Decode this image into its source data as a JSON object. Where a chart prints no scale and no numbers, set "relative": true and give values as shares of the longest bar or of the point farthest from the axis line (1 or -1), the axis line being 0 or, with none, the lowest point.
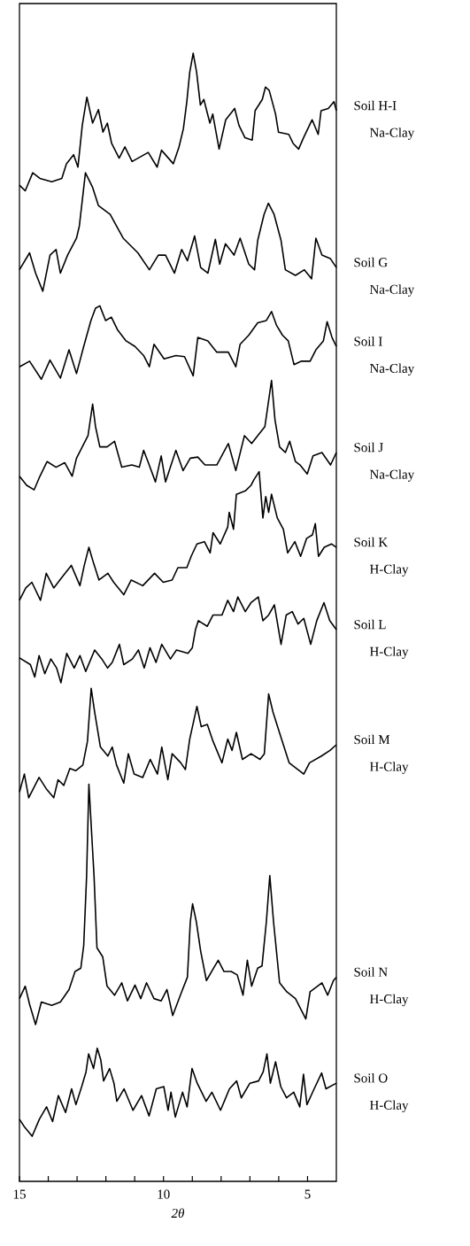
{
  "chart_data": {
    "type": "line",
    "relative": true,
    "xlabel": "2θ",
    "xlim": [
      15,
      4
    ],
    "xticks": [
      15,
      {
        "value": 14,
        "label": null
      },
      {
        "value": 13,
        "label": null
      },
      {
        "value": 12,
        "label": null
      },
      {
        "value": 11,
        "label": null
      },
      10,
      {
        "value": 9,
        "label": null
      },
      {
        "value": 8,
        "label": null
      },
      {
        "value": 7,
        "label": null
      },
      {
        "value": 6,
        "label": null
      },
      5
    ],
    "annotations": [
      "Na-Clay",
      "Na-Clay",
      "Na-Clay",
      "Na-Clay",
      "H-Clay",
      "H-Clay",
      "H-Clay",
      "H-Clay",
      "H-Clay"
    ],
    "series": [
      {
        "name": "Soil H-I",
        "color": "#000000",
        "x": [
          15.0,
          14.8,
          14.54,
          14.29,
          13.88,
          13.53,
          13.37,
          13.12,
          12.97,
          12.82,
          12.66,
          12.46,
          12.26,
          12.1,
          11.95,
          11.8,
          11.54,
          11.34,
          11.09,
          10.53,
          10.22,
          10.07,
          9.66,
          9.46,
          9.31,
          9.19,
          9.09,
          8.97,
          8.85,
          8.72,
          8.6,
          8.39,
          8.29,
          8.07,
          7.84,
          7.53,
          7.38,
          7.17,
          6.92,
          6.82,
          6.57,
          6.46,
          6.33,
          6.11,
          6.01,
          5.65,
          5.5,
          5.31,
          5.14,
          4.84,
          4.63,
          4.53,
          4.28,
          4.08,
          4.0
        ],
        "values": [
          0.883,
          0.878,
          0.894,
          0.889,
          0.886,
          0.889,
          0.902,
          0.91,
          0.899,
          0.936,
          0.961,
          0.938,
          0.95,
          0.93,
          0.938,
          0.92,
          0.907,
          0.917,
          0.904,
          0.912,
          0.899,
          0.914,
          0.902,
          0.917,
          0.933,
          0.957,
          0.983,
          1.0,
          0.983,
          0.954,
          0.959,
          0.938,
          0.946,
          0.915,
          0.941,
          0.951,
          0.936,
          0.925,
          0.923,
          0.949,
          0.959,
          0.97,
          0.967,
          0.946,
          0.93,
          0.928,
          0.92,
          0.915,
          0.925,
          0.941,
          0.928,
          0.949,
          0.951,
          0.957,
          0.949
        ]
      },
      {
        "name": "Soil G",
        "color": "#000000",
        "x": [
          15.0,
          14.65,
          14.44,
          14.19,
          13.94,
          13.73,
          13.58,
          13.33,
          13.02,
          12.92,
          12.71,
          12.46,
          12.26,
          11.85,
          11.4,
          10.89,
          10.49,
          10.18,
          9.93,
          9.62,
          9.37,
          9.17,
          8.92,
          8.71,
          8.46,
          8.2,
          8.05,
          7.85,
          7.55,
          7.34,
          7.04,
          6.84,
          6.73,
          6.51,
          6.36,
          6.16,
          5.92,
          5.77,
          5.42,
          5.11,
          4.86,
          4.71,
          4.5,
          4.21,
          4.0
        ],
        "values": [
          0.808,
          0.823,
          0.805,
          0.789,
          0.821,
          0.826,
          0.805,
          0.821,
          0.836,
          0.847,
          0.894,
          0.881,
          0.865,
          0.857,
          0.836,
          0.823,
          0.808,
          0.821,
          0.821,
          0.805,
          0.826,
          0.816,
          0.838,
          0.81,
          0.805,
          0.835,
          0.813,
          0.831,
          0.821,
          0.836,
          0.813,
          0.808,
          0.834,
          0.857,
          0.867,
          0.857,
          0.834,
          0.808,
          0.803,
          0.808,
          0.8,
          0.836,
          0.821,
          0.818,
          0.81
        ]
      },
      {
        "name": "Soil I",
        "color": "#000000",
        "x": [
          15.0,
          14.65,
          14.24,
          13.94,
          13.58,
          13.28,
          13.02,
          12.77,
          12.52,
          12.36,
          12.21,
          12.01,
          11.81,
          11.6,
          11.3,
          10.99,
          10.69,
          10.49,
          10.33,
          9.98,
          9.57,
          9.27,
          8.97,
          8.81,
          8.46,
          8.15,
          7.75,
          7.49,
          7.34,
          7.04,
          6.73,
          6.43,
          6.25,
          6.08,
          5.87,
          5.67,
          5.47,
          5.21,
          4.91,
          4.71,
          4.45,
          4.32,
          4.15,
          4.0
        ],
        "values": [
          0.722,
          0.727,
          0.711,
          0.728,
          0.712,
          0.737,
          0.716,
          0.74,
          0.763,
          0.774,
          0.776,
          0.763,
          0.766,
          0.755,
          0.745,
          0.74,
          0.732,
          0.722,
          0.742,
          0.729,
          0.732,
          0.731,
          0.714,
          0.748,
          0.745,
          0.735,
          0.735,
          0.722,
          0.742,
          0.75,
          0.761,
          0.763,
          0.771,
          0.759,
          0.75,
          0.745,
          0.724,
          0.727,
          0.727,
          0.737,
          0.745,
          0.762,
          0.748,
          0.74
        ]
      },
      {
        "name": "Soil  J",
        "color": "#000000",
        "x": [
          15.0,
          14.75,
          14.49,
          14.29,
          14.04,
          13.73,
          13.43,
          13.17,
          13.02,
          12.82,
          12.62,
          12.46,
          12.36,
          12.21,
          11.96,
          11.7,
          11.45,
          11.1,
          10.84,
          10.69,
          10.54,
          10.28,
          10.08,
          9.93,
          9.57,
          9.32,
          9.07,
          8.81,
          8.56,
          8.15,
          7.75,
          7.49,
          7.19,
          6.94,
          6.73,
          6.48,
          6.25,
          6.13,
          5.97,
          5.77,
          5.62,
          5.42,
          5.26,
          5.01,
          4.81,
          4.5,
          4.2,
          4.0
        ],
        "values": [
          0.625,
          0.617,
          0.613,
          0.625,
          0.638,
          0.633,
          0.637,
          0.625,
          0.641,
          0.651,
          0.661,
          0.689,
          0.669,
          0.651,
          0.651,
          0.656,
          0.633,
          0.635,
          0.633,
          0.648,
          0.638,
          0.62,
          0.643,
          0.62,
          0.648,
          0.63,
          0.641,
          0.642,
          0.635,
          0.635,
          0.654,
          0.63,
          0.661,
          0.654,
          0.661,
          0.669,
          0.71,
          0.675,
          0.651,
          0.646,
          0.656,
          0.638,
          0.635,
          0.627,
          0.643,
          0.646,
          0.635,
          0.646
        ]
      },
      {
        "name": "Soil  K",
        "color": "#000000",
        "x": [
          15.0,
          14.78,
          14.57,
          14.27,
          14.07,
          13.81,
          13.51,
          13.2,
          12.9,
          12.75,
          12.59,
          12.44,
          12.24,
          11.93,
          11.73,
          11.38,
          11.12,
          10.72,
          10.31,
          10.01,
          9.7,
          9.5,
          9.19,
          9.04,
          8.84,
          8.58,
          8.38,
          8.28,
          8.03,
          7.77,
          7.72,
          7.57,
          7.47,
          7.16,
          6.96,
          6.86,
          6.68,
          6.55,
          6.45,
          6.35,
          6.25,
          6.05,
          5.84,
          5.69,
          5.44,
          5.24,
          5.03,
          4.83,
          4.73,
          4.62,
          4.42,
          4.17,
          4.0
        ],
        "values": [
          0.515,
          0.526,
          0.531,
          0.515,
          0.539,
          0.526,
          0.536,
          0.546,
          0.528,
          0.546,
          0.562,
          0.549,
          0.533,
          0.539,
          0.531,
          0.52,
          0.533,
          0.528,
          0.539,
          0.531,
          0.533,
          0.544,
          0.544,
          0.554,
          0.565,
          0.567,
          0.557,
          0.575,
          0.565,
          0.58,
          0.593,
          0.578,
          0.609,
          0.612,
          0.617,
          0.622,
          0.629,
          0.588,
          0.607,
          0.593,
          0.609,
          0.588,
          0.578,
          0.557,
          0.567,
          0.554,
          0.57,
          0.573,
          0.583,
          0.554,
          0.562,
          0.565,
          0.562
        ]
      },
      {
        "name": "Soil  L",
        "color": "#000000",
        "x": [
          15.0,
          14.62,
          14.47,
          14.32,
          14.12,
          13.91,
          13.71,
          13.56,
          13.36,
          13.1,
          12.9,
          12.7,
          12.39,
          12.14,
          11.94,
          11.78,
          11.53,
          11.38,
          11.08,
          10.87,
          10.67,
          10.47,
          10.26,
          10.06,
          9.76,
          9.55,
          9.15,
          9.0,
          8.89,
          8.79,
          8.48,
          8.28,
          7.97,
          7.77,
          7.57,
          7.42,
          7.16,
          6.96,
          6.71,
          6.55,
          6.35,
          6.15,
          5.92,
          5.74,
          5.53,
          5.33,
          5.13,
          4.89,
          4.68,
          4.43,
          4.23,
          4.0
        ],
        "values": [
          0.464,
          0.458,
          0.447,
          0.466,
          0.45,
          0.463,
          0.455,
          0.442,
          0.468,
          0.455,
          0.466,
          0.452,
          0.471,
          0.463,
          0.455,
          0.46,
          0.476,
          0.458,
          0.463,
          0.471,
          0.455,
          0.473,
          0.46,
          0.476,
          0.463,
          0.471,
          0.468,
          0.473,
          0.489,
          0.497,
          0.492,
          0.502,
          0.502,
          0.515,
          0.505,
          0.518,
          0.505,
          0.513,
          0.518,
          0.497,
          0.502,
          0.511,
          0.476,
          0.502,
          0.505,
          0.494,
          0.499,
          0.476,
          0.497,
          0.513,
          0.497,
          0.489
        ]
      },
      {
        "name": "Soil  M",
        "color": "#000000",
        "x": [
          15.0,
          14.83,
          14.68,
          14.32,
          14.07,
          13.81,
          13.66,
          13.46,
          13.25,
          13.05,
          12.8,
          12.64,
          12.51,
          12.39,
          12.19,
          11.93,
          11.78,
          11.63,
          11.38,
          11.22,
          11.02,
          10.72,
          10.46,
          10.21,
          10.06,
          9.85,
          9.7,
          9.4,
          9.24,
          9.09,
          8.84,
          8.69,
          8.48,
          8.28,
          7.97,
          7.77,
          7.62,
          7.47,
          7.26,
          6.96,
          6.65,
          6.5,
          6.35,
          6.2,
          5.94,
          5.64,
          5.13,
          4.93,
          4.52,
          4.22,
          4.0
        ],
        "values": [
          0.345,
          0.361,
          0.34,
          0.358,
          0.348,
          0.34,
          0.356,
          0.351,
          0.366,
          0.364,
          0.369,
          0.39,
          0.437,
          0.416,
          0.385,
          0.377,
          0.385,
          0.369,
          0.353,
          0.379,
          0.361,
          0.358,
          0.374,
          0.361,
          0.385,
          0.356,
          0.379,
          0.371,
          0.365,
          0.392,
          0.421,
          0.403,
          0.405,
          0.39,
          0.371,
          0.392,
          0.382,
          0.398,
          0.374,
          0.379,
          0.374,
          0.379,
          0.432,
          0.416,
          0.395,
          0.371,
          0.361,
          0.371,
          0.377,
          0.382,
          0.387
        ]
      },
      {
        "name": "Soil  N",
        "color": "#000000",
        "x": [
          15.0,
          14.8,
          14.65,
          14.44,
          14.24,
          13.88,
          13.58,
          13.28,
          13.07,
          12.87,
          12.77,
          12.67,
          12.59,
          12.41,
          12.31,
          12.11,
          11.96,
          11.7,
          11.45,
          11.25,
          10.99,
          10.79,
          10.59,
          10.33,
          10.08,
          9.88,
          9.68,
          9.37,
          9.17,
          9.07,
          8.99,
          8.86,
          8.71,
          8.51,
          8.26,
          8.1,
          7.9,
          7.65,
          7.44,
          7.24,
          7.09,
          6.94,
          6.73,
          6.58,
          6.43,
          6.31,
          6.18,
          5.97,
          5.72,
          5.42,
          5.06,
          4.91,
          4.5,
          4.3,
          4.1,
          4.0
        ],
        "values": [
          0.162,
          0.173,
          0.157,
          0.139,
          0.159,
          0.156,
          0.159,
          0.17,
          0.186,
          0.189,
          0.209,
          0.27,
          0.352,
          0.27,
          0.207,
          0.199,
          0.173,
          0.165,
          0.176,
          0.16,
          0.174,
          0.162,
          0.176,
          0.162,
          0.16,
          0.17,
          0.147,
          0.168,
          0.181,
          0.23,
          0.246,
          0.23,
          0.204,
          0.178,
          0.189,
          0.196,
          0.186,
          0.186,
          0.183,
          0.165,
          0.196,
          0.173,
          0.189,
          0.191,
          0.23,
          0.271,
          0.23,
          0.176,
          0.168,
          0.162,
          0.144,
          0.168,
          0.176,
          0.165,
          0.178,
          0.181
        ]
      },
      {
        "name": "Soil  O",
        "color": "#000000",
        "x": [
          15.0,
          14.82,
          14.56,
          14.31,
          14.06,
          13.85,
          13.65,
          13.4,
          13.19,
          13.04,
          12.84,
          12.69,
          12.6,
          12.43,
          12.3,
          12.18,
          12.08,
          11.87,
          11.72,
          11.62,
          11.37,
          11.06,
          10.76,
          10.5,
          10.25,
          9.99,
          9.84,
          9.74,
          9.59,
          9.34,
          9.18,
          9.01,
          8.83,
          8.52,
          8.32,
          8.02,
          7.71,
          7.46,
          7.3,
          7.0,
          6.7,
          6.54,
          6.41,
          6.29,
          6.11,
          5.93,
          5.73,
          5.48,
          5.27,
          5.14,
          5.02,
          4.77,
          4.51,
          4.36,
          4.0
        ],
        "values": [
          0.055,
          0.048,
          0.04,
          0.055,
          0.066,
          0.053,
          0.076,
          0.061,
          0.082,
          0.068,
          0.084,
          0.097,
          0.113,
          0.1,
          0.118,
          0.108,
          0.089,
          0.1,
          0.087,
          0.071,
          0.082,
          0.063,
          0.076,
          0.058,
          0.082,
          0.084,
          0.063,
          0.079,
          0.057,
          0.079,
          0.066,
          0.1,
          0.087,
          0.071,
          0.079,
          0.063,
          0.082,
          0.089,
          0.074,
          0.087,
          0.089,
          0.097,
          0.113,
          0.087,
          0.106,
          0.084,
          0.074,
          0.079,
          0.066,
          0.095,
          0.068,
          0.082,
          0.096,
          0.082,
          0.087
        ]
      }
    ]
  }
}
